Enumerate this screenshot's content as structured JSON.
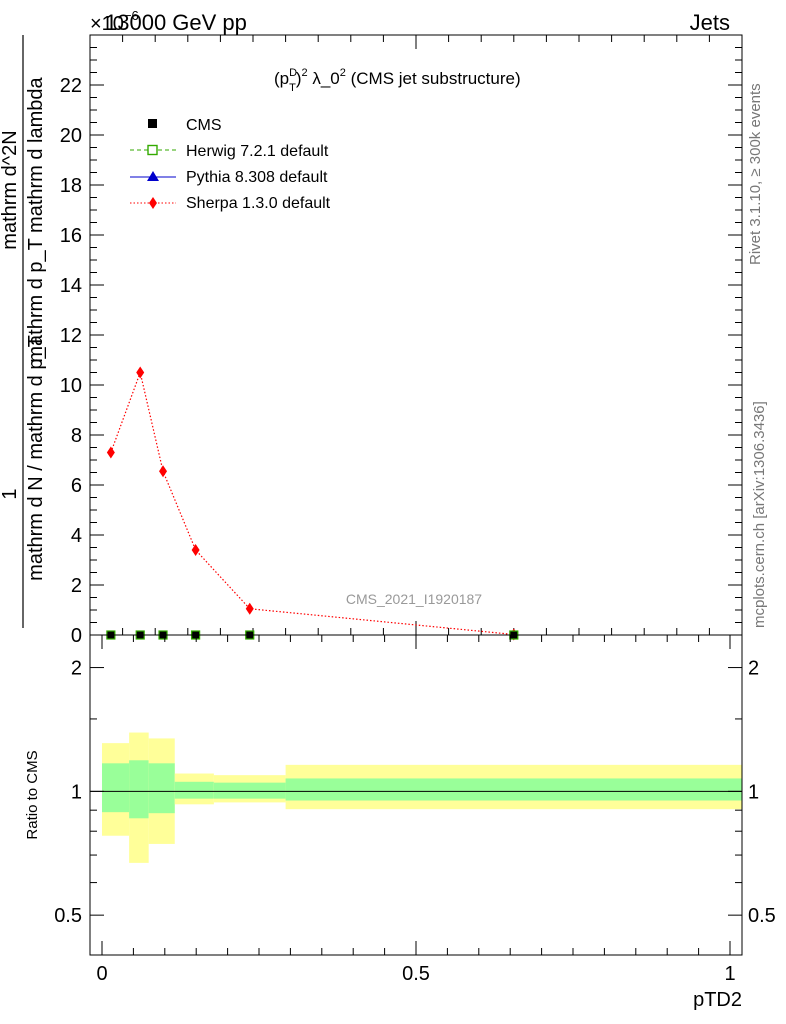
{
  "header": {
    "left": "13000 GeV pp",
    "right": "Jets",
    "exponent": "×10",
    "exponent_power": "−6"
  },
  "side_labels": {
    "rivet": "Rivet 3.1.10, ≥ 300k events",
    "mcplots": "mcplots.cern.ch [arXiv:1306.3436]"
  },
  "watermark": "CMS_2021_I1920187",
  "colors": {
    "sherpa": "#ff0000",
    "herwig": "#33aa00",
    "pythia": "#0000cc",
    "cms": "#000000",
    "band_inner": "#99ff99",
    "band_outer": "#ffff99"
  },
  "chart_data": [
    {
      "type": "line",
      "title": "(p_T^D)^2 λ_0^2 (CMS jet substructure)",
      "title_parts": {
        "p": "(p",
        "sup_d": "D",
        "sub_t": "T",
        "close": ")",
        "sup_2": "2",
        "rest": " λ_0",
        "sup_0": "2",
        "tail": " (CMS jet substructure)"
      },
      "ylabel": {
        "numerator_one": "1",
        "denominator": "mathrm d N / mathrm d p_T",
        "fraction_num": "mathrm d^2N",
        "fraction_den": "mathrm d p_T mathrm d lambda"
      },
      "xlim": [
        0,
        1
      ],
      "ylim": [
        0,
        24
      ],
      "y_ticks": [
        0,
        2,
        4,
        6,
        8,
        10,
        12,
        14,
        16,
        18,
        20,
        22
      ],
      "y_tick_labels": [
        "0",
        "2",
        "4",
        "6",
        "8",
        "10",
        "12",
        "14",
        "16",
        "18",
        "20",
        "22"
      ],
      "legend_position": "top-left",
      "x": [
        0.032,
        0.077,
        0.112,
        0.162,
        0.245,
        0.65
      ],
      "series": [
        {
          "name": "CMS",
          "values": [
            0,
            0,
            0,
            0,
            0,
            0
          ],
          "marker": "square-filled"
        },
        {
          "name": "Herwig 7.2.1 default",
          "values": [
            0,
            0,
            0,
            0,
            0,
            0
          ],
          "marker": "square-open",
          "line": "dashed"
        },
        {
          "name": "Pythia 8.308 default",
          "values": [
            0,
            0,
            0,
            0,
            0,
            0
          ],
          "marker": "triangle",
          "line": "solid"
        },
        {
          "name": "Sherpa 1.3.0 default",
          "values": [
            7.3,
            10.5,
            6.55,
            3.4,
            1.05,
            0.02
          ],
          "marker": "diamond",
          "line": "dotted"
        }
      ]
    },
    {
      "type": "area",
      "ylabel": "Ratio to CMS",
      "xlabel": "pTD2",
      "xlim": [
        0,
        1
      ],
      "ylim": [
        0.4,
        2.4
      ],
      "log_y": true,
      "y_ticks": [
        0.5,
        1,
        2
      ],
      "y_tick_labels": [
        "0.5",
        "1",
        "2"
      ],
      "x_ticks": [
        0,
        0.5,
        1
      ],
      "x_tick_labels": [
        "0",
        "0.5",
        "1"
      ],
      "bins": [
        {
          "lo": 0.0,
          "hi": 0.06,
          "inner": [
            0.89,
            1.17
          ],
          "outer": [
            0.78,
            1.31
          ]
        },
        {
          "lo": 0.06,
          "hi": 0.09,
          "inner": [
            0.86,
            1.19
          ],
          "outer": [
            0.67,
            1.39
          ]
        },
        {
          "lo": 0.09,
          "hi": 0.13,
          "inner": [
            0.885,
            1.17
          ],
          "outer": [
            0.745,
            1.345
          ]
        },
        {
          "lo": 0.13,
          "hi": 0.19,
          "inner": [
            0.96,
            1.055
          ],
          "outer": [
            0.93,
            1.105
          ]
        },
        {
          "lo": 0.19,
          "hi": 0.3,
          "inner": [
            0.96,
            1.05
          ],
          "outer": [
            0.94,
            1.095
          ]
        },
        {
          "lo": 0.3,
          "hi": 1.0,
          "inner": [
            0.95,
            1.075
          ],
          "outer": [
            0.905,
            1.16
          ]
        }
      ]
    }
  ]
}
